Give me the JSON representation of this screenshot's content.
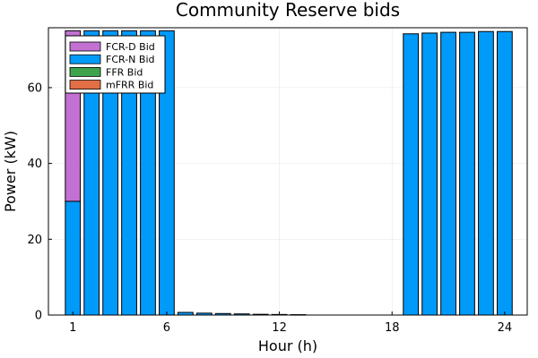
{
  "chart_data": {
    "type": "bar",
    "stacked": true,
    "title": "Community Reserve bids",
    "xlabel": "Hour (h)",
    "ylabel": "Power (kW)",
    "x": [
      1,
      2,
      3,
      4,
      5,
      6,
      7,
      8,
      9,
      10,
      11,
      12,
      13,
      14,
      15,
      16,
      17,
      18,
      19,
      20,
      21,
      22,
      23,
      24
    ],
    "xticks": [
      1,
      6,
      12,
      18,
      24
    ],
    "xlim": [
      -0.3,
      25.2
    ],
    "ylim": [
      0,
      75.8
    ],
    "yticks": [
      0,
      20,
      40,
      60
    ],
    "grid": true,
    "legend_position": "top-left",
    "series": [
      {
        "name": "FCR-N Bid",
        "color": "#009af9",
        "values": [
          30,
          75,
          75,
          75,
          75,
          75,
          0.7,
          0.5,
          0.4,
          0.3,
          0.2,
          0.15,
          0.1,
          0,
          0,
          0,
          0,
          0,
          74.2,
          74.4,
          74.6,
          74.6,
          74.8,
          74.8
        ]
      },
      {
        "name": "FCR-D Bid",
        "color": "#c271d2",
        "values": [
          45,
          0,
          0,
          0,
          0,
          0,
          0,
          0,
          0,
          0,
          0,
          0,
          0,
          0,
          0,
          0,
          0,
          0,
          0,
          0,
          0,
          0,
          0,
          0
        ]
      },
      {
        "name": "FFR Bid",
        "color": "#3da44d",
        "values": [
          0,
          0,
          0,
          0,
          0,
          0,
          0,
          0,
          0,
          0,
          0,
          0,
          0,
          0,
          0,
          0,
          0,
          0,
          0,
          0,
          0,
          0,
          0,
          0
        ]
      },
      {
        "name": "mFRR Bid",
        "color": "#e26f46",
        "values": [
          0,
          0,
          0,
          0,
          0,
          0,
          0,
          0,
          0,
          0,
          0,
          0,
          0,
          0,
          0,
          0,
          0,
          0,
          0,
          0,
          0,
          0,
          0,
          0
        ]
      }
    ],
    "legend_order": [
      "FCR-D Bid",
      "FCR-N Bid",
      "FFR Bid",
      "mFRR Bid"
    ]
  }
}
